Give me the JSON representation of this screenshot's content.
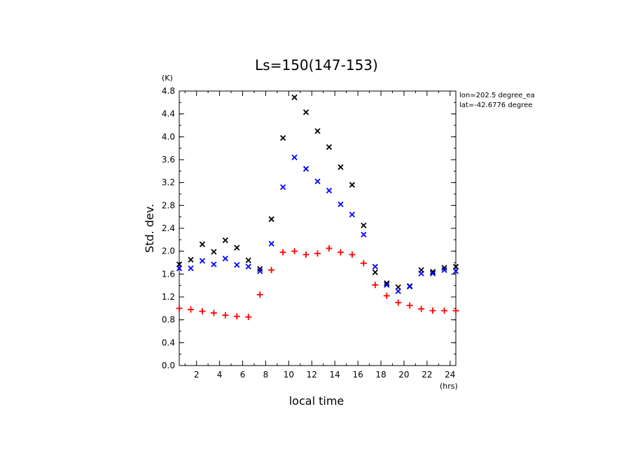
{
  "chart_data": {
    "type": "scatter",
    "title": "Ls=150(147-153)",
    "ylabel": "Std. dev.",
    "yunit": "(K)",
    "xlabel": "local time",
    "xunit": "(hrs)",
    "xlim": [
      0.5,
      24.5
    ],
    "ylim": [
      0.0,
      4.8
    ],
    "yticks": [
      0.0,
      0.4,
      0.8,
      1.2,
      1.6,
      2.0,
      2.4,
      2.8,
      3.2,
      3.6,
      4.0,
      4.4,
      4.8
    ],
    "ytick_labels": [
      "0.0",
      "0.4",
      "0.8",
      "1.2",
      "1.6",
      "2.0",
      "2.4",
      "2.8",
      "3.2",
      "3.6",
      "4.0",
      "4.4",
      "4.8"
    ],
    "xticks": [
      2,
      4,
      6,
      8,
      10,
      12,
      14,
      16,
      18,
      20,
      22,
      24
    ],
    "xtick_labels": [
      "2",
      "4",
      "6",
      "8",
      "10",
      "12",
      "14",
      "16",
      "18",
      "20",
      "22",
      "24"
    ],
    "annotations": [
      "lon=202.5 degree_ea",
      "lat=-42.6776 degree"
    ],
    "series": [
      {
        "color": "#000000",
        "marker": "x",
        "x": [
          0.5,
          1.5,
          2.5,
          3.5,
          4.5,
          5.5,
          6.5,
          7.5,
          8.5,
          9.5,
          10.5,
          11.5,
          12.5,
          13.5,
          14.5,
          15.5,
          16.5,
          17.5,
          18.5,
          19.5,
          20.5,
          21.5,
          22.5,
          23.5,
          24.5
        ],
        "y": [
          1.77,
          1.85,
          2.12,
          1.99,
          2.19,
          2.06,
          1.84,
          1.69,
          2.56,
          3.98,
          4.69,
          4.43,
          4.1,
          3.82,
          3.47,
          3.16,
          2.45,
          1.63,
          1.44,
          1.37,
          1.39,
          1.67,
          1.64,
          1.71,
          1.73
        ]
      },
      {
        "color": "#0000ff",
        "marker": "x",
        "x": [
          0.5,
          1.5,
          2.5,
          3.5,
          4.5,
          5.5,
          6.5,
          7.5,
          8.5,
          9.5,
          10.5,
          11.5,
          12.5,
          13.5,
          14.5,
          15.5,
          16.5,
          17.5,
          18.5,
          19.5,
          20.5,
          21.5,
          22.5,
          23.5,
          24.5
        ],
        "y": [
          1.7,
          1.7,
          1.83,
          1.77,
          1.87,
          1.76,
          1.73,
          1.65,
          2.13,
          3.12,
          3.64,
          3.44,
          3.22,
          3.06,
          2.82,
          2.64,
          2.29,
          1.73,
          1.41,
          1.3,
          1.38,
          1.61,
          1.61,
          1.67,
          1.65
        ]
      },
      {
        "color": "#ff0000",
        "marker": "+",
        "x": [
          0.5,
          1.5,
          2.5,
          3.5,
          4.5,
          5.5,
          6.5,
          7.5,
          8.5,
          9.5,
          10.5,
          11.5,
          12.5,
          13.5,
          14.5,
          15.5,
          16.5,
          17.5,
          18.5,
          19.5,
          20.5,
          21.5,
          22.5,
          23.5,
          24.5
        ],
        "y": [
          1.0,
          0.98,
          0.95,
          0.92,
          0.88,
          0.86,
          0.85,
          1.24,
          1.67,
          1.98,
          2.0,
          1.94,
          1.96,
          2.05,
          1.98,
          1.94,
          1.79,
          1.41,
          1.22,
          1.1,
          1.05,
          0.99,
          0.96,
          0.96,
          0.96
        ]
      }
    ]
  }
}
